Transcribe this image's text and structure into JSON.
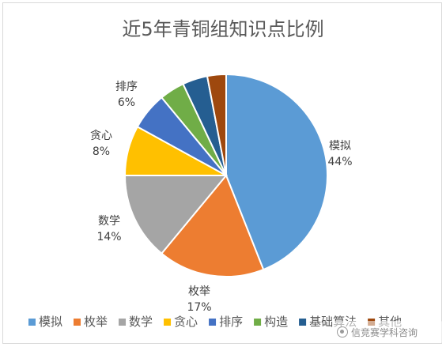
{
  "chart_data": {
    "type": "pie",
    "title": "近5年青铜组知识点比例",
    "categories": [
      "模拟",
      "枚举",
      "数学",
      "贪心",
      "排序",
      "构造",
      "基础算法",
      "其他"
    ],
    "values": [
      44,
      17,
      14,
      8,
      6,
      4,
      4,
      3
    ],
    "data_labels": [
      {
        "name": "模拟",
        "value": "44%"
      },
      {
        "name": "枚举",
        "value": "17%"
      },
      {
        "name": "数学",
        "value": "14%"
      },
      {
        "name": "贪心",
        "value": "8%"
      },
      {
        "name": "排序",
        "value": "6%"
      }
    ],
    "colors": [
      "#5B9BD5",
      "#ED7D31",
      "#A5A5A5",
      "#FFC000",
      "#4472C4",
      "#70AD47",
      "#255E91",
      "#9E480E"
    ],
    "legend": {
      "placement": "bottom",
      "entries": [
        "模拟",
        "枚举",
        "数学",
        "贪心",
        "排序",
        "构造",
        "基础算法",
        "其他"
      ]
    }
  },
  "watermark": {
    "text": "信竞赛学科咨询"
  }
}
